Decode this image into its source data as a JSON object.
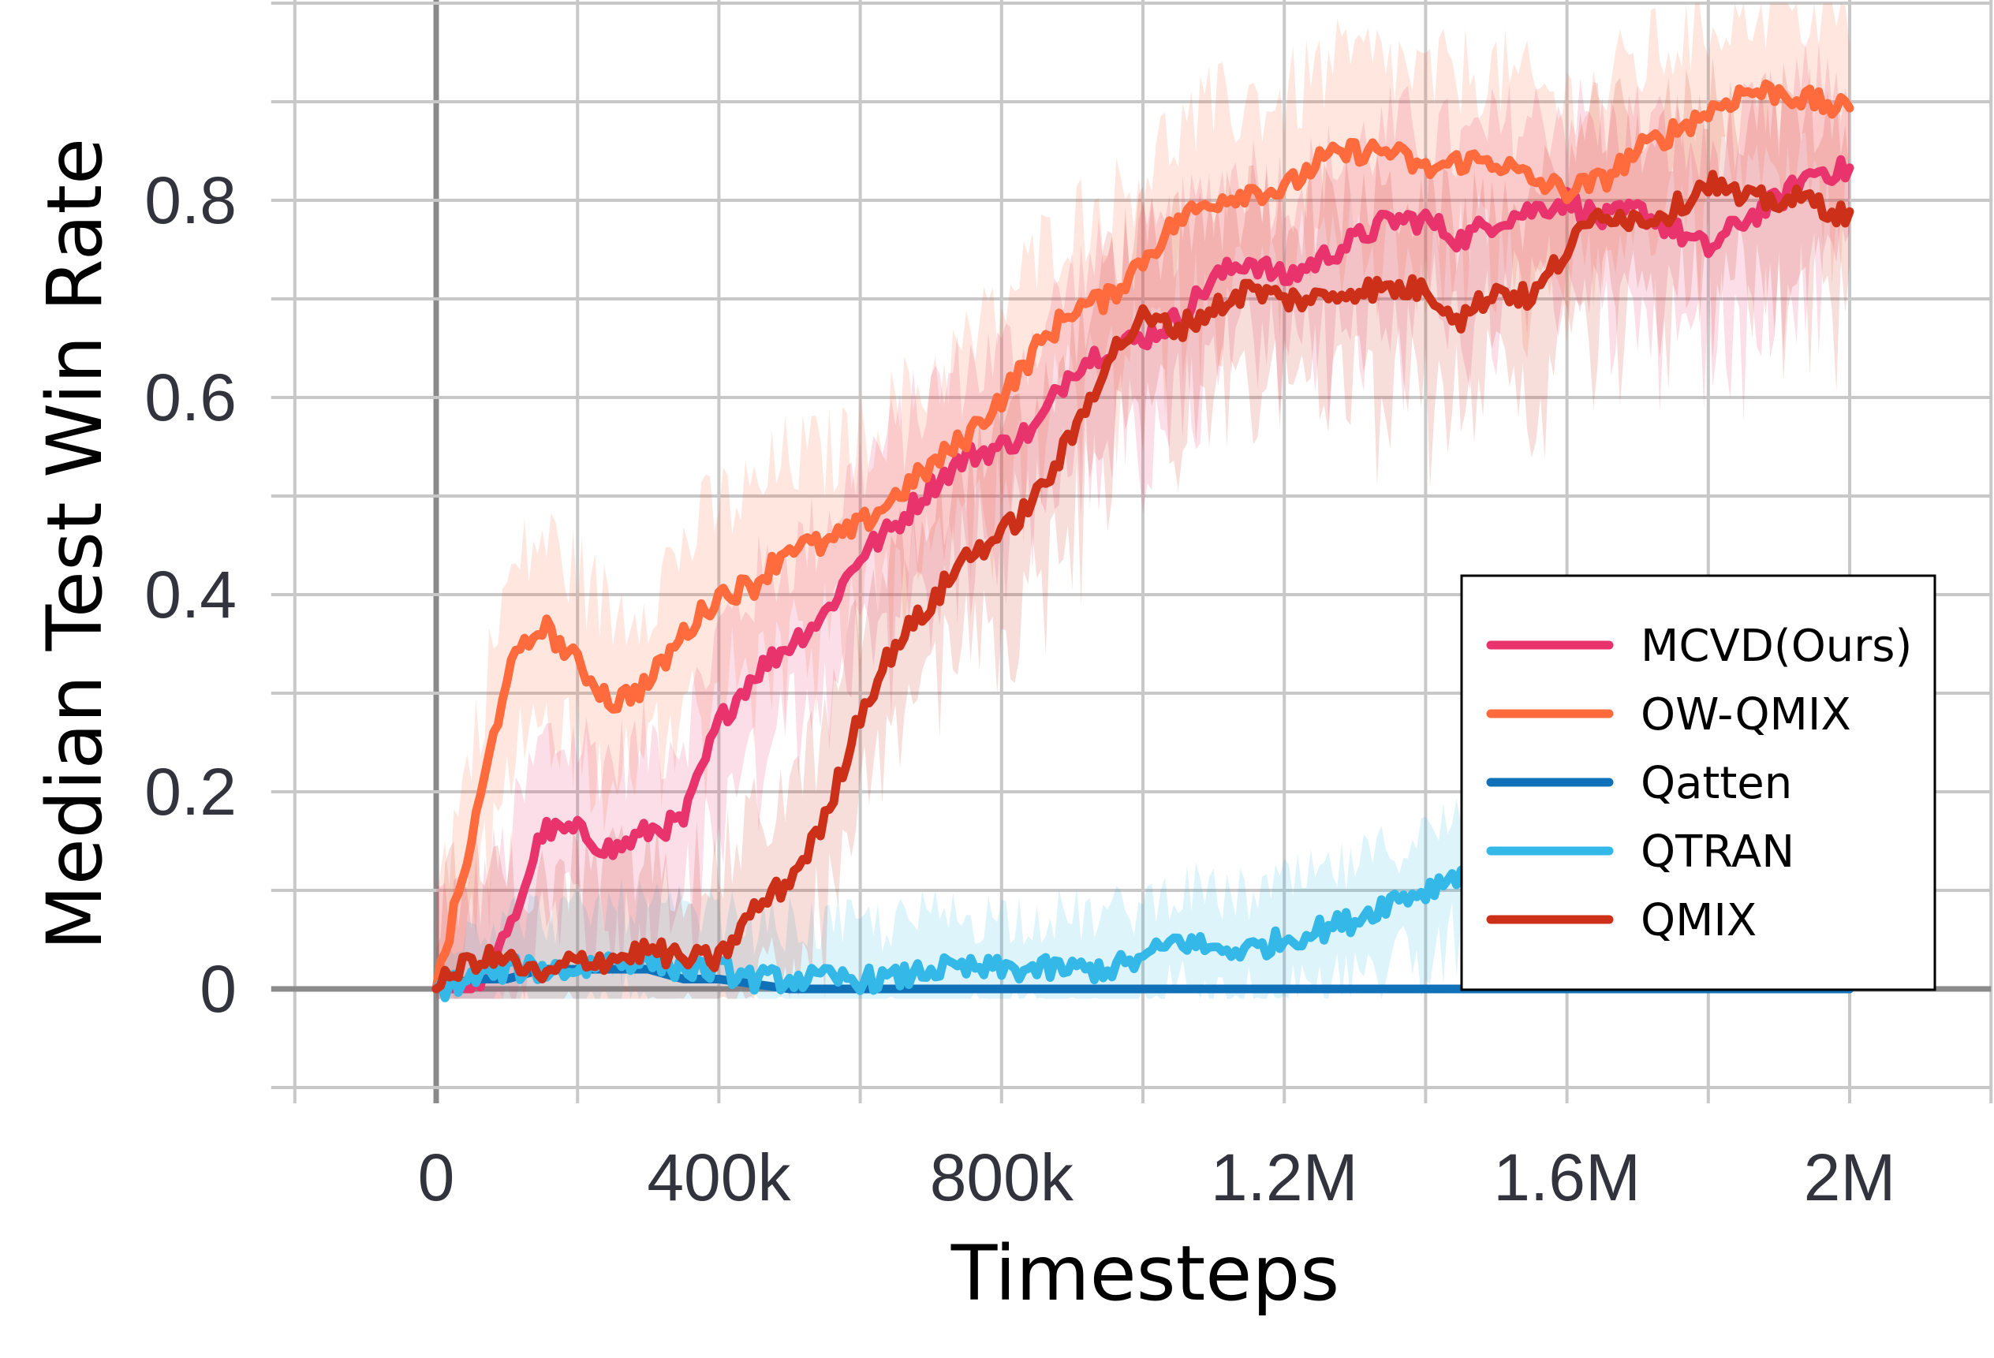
{
  "chart_data": {
    "type": "line",
    "title": "",
    "xlabel": "Timesteps",
    "ylabel": "Median Test Win Rate",
    "xlim": [
      -200000,
      2200000
    ],
    "ylim": [
      -0.1,
      1.0
    ],
    "x_ticks": [
      0,
      400000,
      800000,
      1200000,
      1600000,
      2000000
    ],
    "x_tick_labels": [
      "0",
      "400k",
      "800k",
      "1.2M",
      "1.6M",
      "2M"
    ],
    "y_ticks": [
      0,
      0.2,
      0.4,
      0.6,
      0.8
    ],
    "y_tick_labels": [
      "0",
      "0.2",
      "0.4",
      "0.6",
      "0.8"
    ],
    "grid": true,
    "legend_position": "bottom-right",
    "x": [
      0,
      50000,
      100000,
      150000,
      200000,
      250000,
      300000,
      350000,
      400000,
      450000,
      500000,
      550000,
      600000,
      650000,
      700000,
      750000,
      800000,
      850000,
      900000,
      950000,
      1000000,
      1050000,
      1100000,
      1150000,
      1200000,
      1250000,
      1300000,
      1350000,
      1400000,
      1450000,
      1500000,
      1550000,
      1600000,
      1650000,
      1700000,
      1750000,
      1800000,
      1850000,
      1900000,
      1950000,
      2000000
    ],
    "series": [
      {
        "name": "MCVD(Ours)",
        "color": "#e8336d",
        "values": [
          0,
          0,
          0.05,
          0.16,
          0.16,
          0.14,
          0.16,
          0.17,
          0.27,
          0.32,
          0.35,
          0.38,
          0.44,
          0.47,
          0.51,
          0.54,
          0.55,
          0.57,
          0.63,
          0.65,
          0.66,
          0.68,
          0.72,
          0.74,
          0.72,
          0.74,
          0.76,
          0.78,
          0.78,
          0.76,
          0.78,
          0.79,
          0.8,
          0.78,
          0.79,
          0.77,
          0.75,
          0.78,
          0.8,
          0.83,
          0.83
        ]
      },
      {
        "name": "OW-QMIX",
        "color": "#ff6b3d",
        "values": [
          0,
          0.15,
          0.32,
          0.37,
          0.33,
          0.29,
          0.31,
          0.36,
          0.4,
          0.41,
          0.45,
          0.45,
          0.47,
          0.5,
          0.53,
          0.56,
          0.6,
          0.65,
          0.69,
          0.7,
          0.74,
          0.78,
          0.8,
          0.81,
          0.81,
          0.84,
          0.85,
          0.85,
          0.83,
          0.84,
          0.84,
          0.82,
          0.81,
          0.82,
          0.85,
          0.87,
          0.89,
          0.91,
          0.91,
          0.9,
          0.89
        ]
      },
      {
        "name": "Qatten",
        "color": "#1070b8",
        "values": [
          0,
          0.01,
          0.01,
          0.02,
          0.02,
          0.02,
          0.02,
          0.01,
          0.01,
          0.005,
          0,
          0,
          0,
          0,
          0,
          0,
          0,
          0,
          0,
          0,
          0,
          0,
          0,
          0,
          0,
          0,
          0,
          0,
          0,
          0,
          0,
          0,
          0,
          0,
          0,
          0,
          0,
          0,
          0,
          0,
          0
        ]
      },
      {
        "name": "QTRAN",
        "color": "#33b8e8",
        "values": [
          0,
          0.01,
          0.02,
          0.02,
          0.02,
          0.03,
          0.03,
          0.02,
          0.02,
          0.01,
          0.01,
          0.01,
          0.01,
          0.01,
          0.02,
          0.02,
          0.02,
          0.02,
          0.02,
          0.02,
          0.03,
          0.05,
          0.04,
          0.04,
          0.05,
          0.06,
          0.07,
          0.09,
          0.1,
          0.12,
          0.14,
          0.16,
          0.18,
          0.2,
          0.22,
          0.24,
          0.26,
          0.28,
          0.3,
          0.32,
          0.34
        ]
      },
      {
        "name": "QMIX",
        "color": "#cc3018",
        "values": [
          0,
          0.03,
          0.03,
          0.01,
          0.03,
          0.03,
          0.04,
          0.03,
          0.03,
          0.08,
          0.11,
          0.17,
          0.28,
          0.35,
          0.39,
          0.44,
          0.46,
          0.5,
          0.56,
          0.64,
          0.68,
          0.67,
          0.69,
          0.71,
          0.7,
          0.7,
          0.71,
          0.71,
          0.71,
          0.68,
          0.71,
          0.7,
          0.75,
          0.79,
          0.78,
          0.79,
          0.82,
          0.8,
          0.8,
          0.8,
          0.78
        ]
      }
    ]
  }
}
